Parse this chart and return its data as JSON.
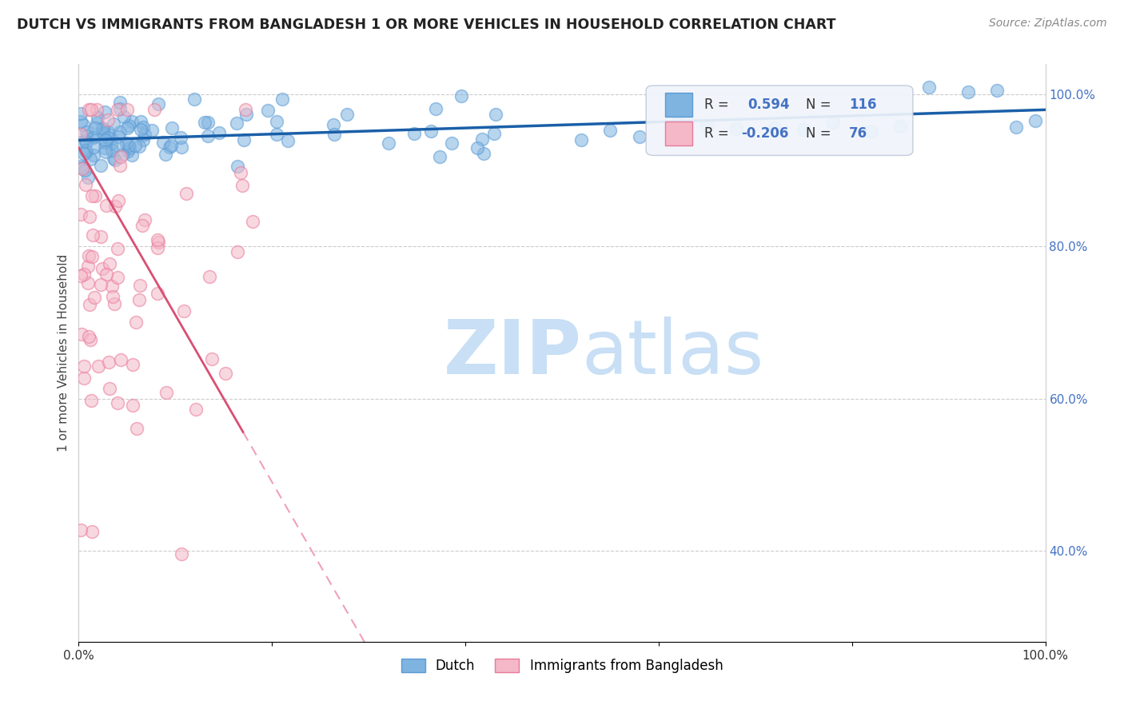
{
  "title": "DUTCH VS IMMIGRANTS FROM BANGLADESH 1 OR MORE VEHICLES IN HOUSEHOLD CORRELATION CHART",
  "source": "Source: ZipAtlas.com",
  "ylabel": "1 or more Vehicles in Household",
  "xlim": [
    0.0,
    1.0
  ],
  "ylim_min": 0.28,
  "ylim_max": 1.04,
  "ytick_vals": [
    0.4,
    0.6,
    0.8,
    1.0
  ],
  "ytick_labels": [
    "40.0%",
    "60.0%",
    "80.0%",
    "100.0%"
  ],
  "xtick_vals": [
    0.0,
    0.2,
    0.4,
    0.6,
    0.8,
    1.0
  ],
  "xtick_labels": [
    "0.0%",
    "",
    "",
    "",
    "",
    "100.0%"
  ],
  "dutch_color": "#7fb3e0",
  "dutch_edge_color": "#5b9bd5",
  "bangladesh_color": "#f4b8c8",
  "bangladesh_edge_color": "#e87a9a",
  "trend_dutch_color": "#1a5fa8",
  "trend_bangladesh_solid_color": "#d94f72",
  "trend_bangladesh_dashed_color": "#f0a0b8",
  "watermark_zip_color": "#c8dff5",
  "watermark_atlas_color": "#c8dff5",
  "grid_color": "#cccccc",
  "background_color": "#ffffff",
  "dutch_R": "0.594",
  "dutch_N": "116",
  "bangladesh_R": "-0.206",
  "bangladesh_N": "76",
  "legend_box_color": "#f0f5fb",
  "legend_border_color": "#c0c8d8",
  "stat_label_color": "#333333",
  "stat_value_color": "#4472c4"
}
